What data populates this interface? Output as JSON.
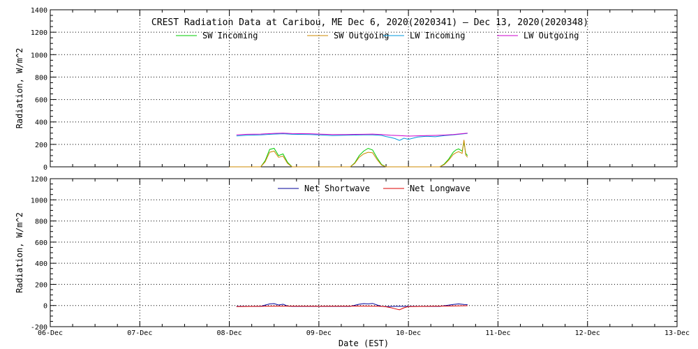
{
  "title": "CREST Radiation Data at Caribou, ME   Dec  6, 2020(2020341) – Dec 13, 2020(2020348)",
  "xlabel": "Date (EST)",
  "chart_data": [
    {
      "type": "line",
      "panel": "top",
      "ylabel": "Radiation, W/m^2",
      "ylim": [
        0,
        1400
      ],
      "yticks": [
        "0",
        "200",
        "400",
        "600",
        "800",
        "1000",
        "1200",
        "1400"
      ],
      "ytick_values": [
        0,
        200,
        400,
        600,
        800,
        1000,
        1200,
        1400
      ],
      "xlim": [
        0,
        7
      ],
      "xticks": [
        "06-Dec",
        "07-Dec",
        "08-Dec",
        "09-Dec",
        "10-Dec",
        "11-Dec",
        "12-Dec",
        "13-Dec"
      ],
      "grid": true,
      "legend": "top",
      "series": [
        {
          "name": "SW Incoming",
          "color": "#00cc00",
          "x": [
            2.0,
            2.35,
            2.4,
            2.45,
            2.5,
            2.55,
            2.6,
            2.65,
            2.7,
            3.35,
            3.4,
            3.45,
            3.5,
            3.55,
            3.6,
            3.65,
            3.7,
            3.75,
            4.35,
            4.4,
            4.45,
            4.5,
            4.53,
            4.56,
            4.6,
            4.62,
            4.64,
            4.66
          ],
          "y": [
            0,
            0,
            55,
            155,
            165,
            100,
            115,
            40,
            0,
            0,
            35,
            100,
            140,
            165,
            150,
            80,
            20,
            0,
            0,
            25,
            70,
            130,
            150,
            160,
            140,
            220,
            120,
            100
          ]
        },
        {
          "name": "SW Outgoing",
          "color": "#cc8800",
          "x": [
            2.0,
            2.35,
            2.4,
            2.45,
            2.5,
            2.55,
            2.6,
            2.65,
            2.7,
            3.35,
            3.4,
            3.45,
            3.5,
            3.55,
            3.6,
            3.65,
            3.7,
            3.75,
            4.35,
            4.4,
            4.45,
            4.5,
            4.53,
            4.56,
            4.6,
            4.62,
            4.64,
            4.66
          ],
          "y": [
            0,
            0,
            45,
            130,
            140,
            85,
            95,
            30,
            0,
            0,
            30,
            85,
            115,
            130,
            125,
            65,
            15,
            0,
            0,
            20,
            60,
            110,
            125,
            135,
            120,
            240,
            105,
            85
          ]
        },
        {
          "name": "LW Incoming",
          "color": "#0099dd",
          "x": [
            2.08,
            2.2,
            2.35,
            2.5,
            2.6,
            2.7,
            2.9,
            3.0,
            3.15,
            3.3,
            3.5,
            3.6,
            3.7,
            3.75,
            3.8,
            3.85,
            3.9,
            3.95,
            4.0,
            4.1,
            4.2,
            4.3,
            4.4,
            4.5,
            4.66
          ],
          "y": [
            275,
            282,
            285,
            292,
            295,
            290,
            288,
            285,
            278,
            282,
            285,
            285,
            280,
            270,
            262,
            252,
            235,
            255,
            245,
            265,
            272,
            268,
            278,
            285,
            298
          ]
        },
        {
          "name": "LW Outgoing",
          "color": "#cc00cc",
          "x": [
            2.08,
            2.2,
            2.35,
            2.5,
            2.6,
            2.7,
            2.9,
            3.0,
            3.15,
            3.3,
            3.5,
            3.6,
            3.7,
            3.8,
            3.9,
            4.0,
            4.1,
            4.2,
            4.3,
            4.4,
            4.5,
            4.66
          ],
          "y": [
            285,
            290,
            292,
            298,
            300,
            296,
            295,
            292,
            288,
            288,
            290,
            292,
            288,
            282,
            278,
            274,
            276,
            278,
            280,
            283,
            288,
            300
          ]
        }
      ]
    },
    {
      "type": "line",
      "panel": "bottom",
      "ylabel": "Radiation, W/m^2",
      "ylim": [
        -200,
        1200
      ],
      "yticks": [
        "-200",
        "0",
        "200",
        "400",
        "600",
        "800",
        "1000",
        "1200"
      ],
      "ytick_values": [
        -200,
        0,
        200,
        400,
        600,
        800,
        1000,
        1200
      ],
      "xlim": [
        0,
        7
      ],
      "xticks": [
        "06-Dec",
        "07-Dec",
        "08-Dec",
        "09-Dec",
        "10-Dec",
        "11-Dec",
        "12-Dec",
        "13-Dec"
      ],
      "grid": true,
      "legend": "top",
      "series": [
        {
          "name": "Net Shortwave",
          "color": "#000099",
          "x": [
            2.08,
            2.35,
            2.45,
            2.5,
            2.55,
            2.6,
            2.65,
            2.7,
            3.0,
            3.35,
            3.45,
            3.5,
            3.55,
            3.6,
            3.65,
            3.7,
            3.75,
            3.85,
            3.9,
            4.0,
            4.35,
            4.5,
            4.56,
            4.62,
            4.66
          ],
          "y": [
            -8,
            -8,
            15,
            18,
            5,
            12,
            -5,
            -8,
            -8,
            -8,
            12,
            18,
            15,
            20,
            5,
            -8,
            -10,
            -8,
            -8,
            -8,
            -8,
            10,
            15,
            10,
            8
          ]
        },
        {
          "name": "Net Longwave",
          "color": "#dd0000",
          "x": [
            2.08,
            2.3,
            2.5,
            2.7,
            3.0,
            3.3,
            3.5,
            3.7,
            3.75,
            3.8,
            3.85,
            3.9,
            3.95,
            4.0,
            4.2,
            4.4,
            4.66
          ],
          "y": [
            -10,
            -8,
            -6,
            -6,
            -7,
            -6,
            -5,
            -8,
            -12,
            -20,
            -30,
            -40,
            -22,
            -10,
            -8,
            -5,
            -2
          ]
        }
      ]
    }
  ]
}
